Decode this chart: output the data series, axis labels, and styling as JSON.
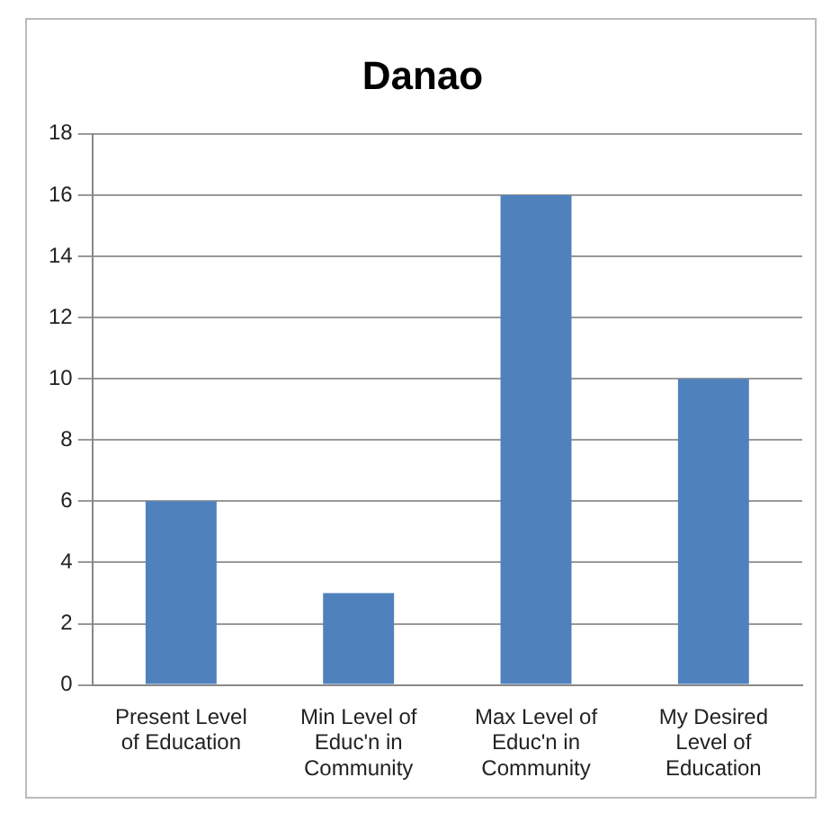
{
  "chart_data": {
    "type": "bar",
    "title": "Danao",
    "categories": [
      "Present Level of Education",
      "Min Level of Educ'n in Community",
      "Max Level of Educ'n in Community",
      "My Desired Level of Education"
    ],
    "values": [
      6,
      3,
      16,
      10
    ],
    "color": "#4f81bd",
    "ylim": [
      0,
      18
    ],
    "yticks": [
      0,
      2,
      4,
      6,
      8,
      10,
      12,
      14,
      16,
      18
    ],
    "grid": "y",
    "legend": false
  }
}
